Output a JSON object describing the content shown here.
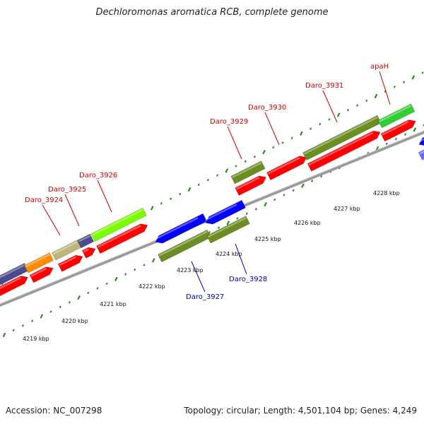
{
  "title": "Dechloromonas aromatica RCB, complete genome",
  "footer": {
    "accession": "Accession: NC_007298",
    "topology": "Topology: circular; Length: 4,501,104 bp; Genes: 4,249"
  },
  "colors": {
    "forward_label": "#cc0000",
    "reverse_label": "#0000aa",
    "tick": "#2e8b22",
    "backbone": "#888888",
    "cds_forward": "#ff0000",
    "cds_reverse": "#0000ff"
  },
  "kbp_ticks": [
    "4219 kbp",
    "4220 kbp",
    "4221 kbp",
    "4222 kbp",
    "4223 kbp",
    "4224 kbp",
    "4225 kbp",
    "4226 kbp",
    "4227 kbp",
    "4228 kbp"
  ],
  "gene_labels": {
    "forward": [
      "Daro_3924",
      "Daro_3925",
      "Daro_3926",
      "Daro_3929",
      "Daro_3930",
      "Daro_3931",
      "apaH"
    ],
    "reverse": [
      "Daro_3927",
      "Daro_3928"
    ]
  }
}
